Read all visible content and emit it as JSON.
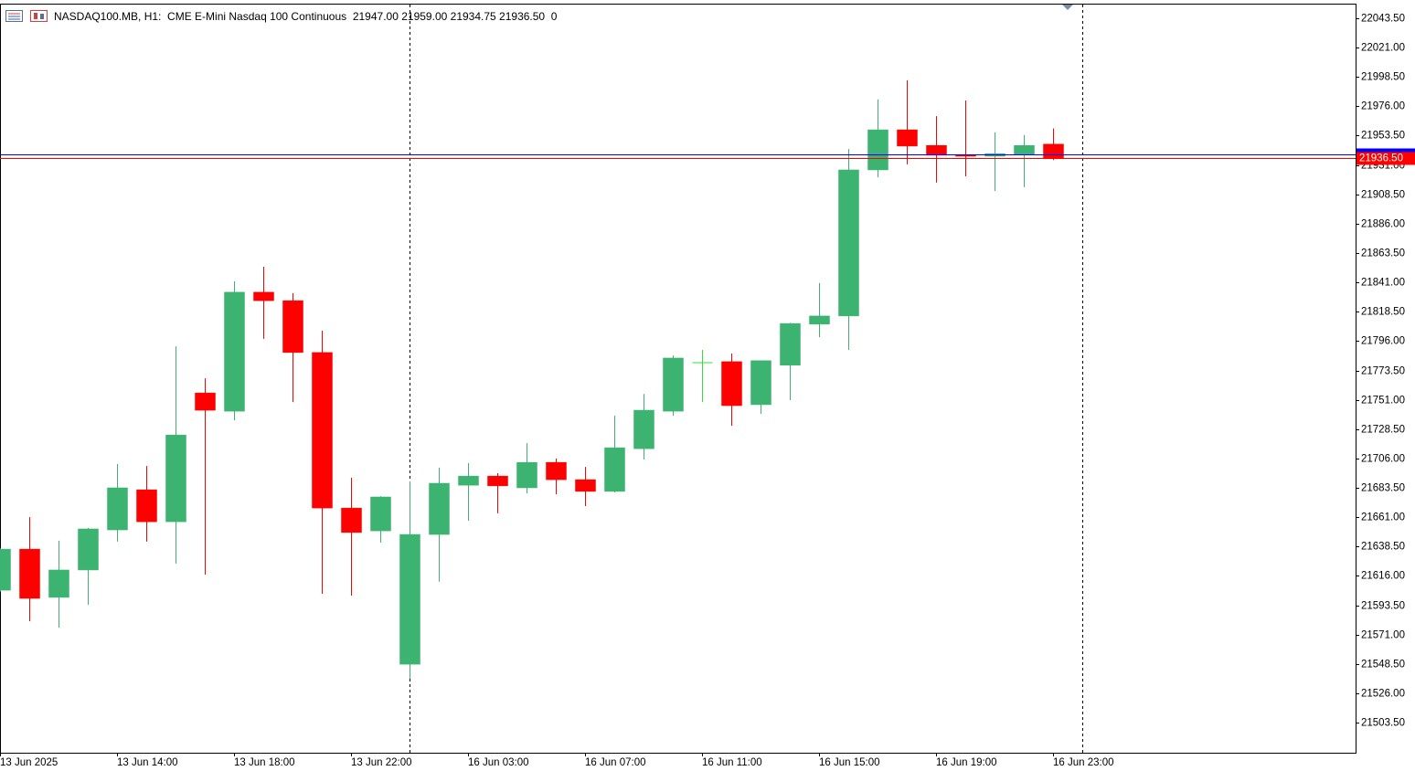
{
  "chart_data": {
    "type": "candlestick",
    "title": "NASDAQ100.MB, H1:",
    "subtitle": "CME E-Mini Nasdaq 100 Continuous",
    "header_values": [
      "21947.00",
      "21959.00",
      "21934.75",
      "21936.50",
      "0"
    ],
    "categories": [
      "13 Jun 2025",
      null,
      null,
      null,
      "13 Jun 14:00",
      null,
      null,
      null,
      "13 Jun 18:00",
      null,
      null,
      null,
      "13 Jun 22:00",
      null,
      null,
      null,
      "16 Jun 03:00",
      null,
      null,
      null,
      "16 Jun 07:00",
      null,
      null,
      null,
      "16 Jun 11:00",
      null,
      null,
      null,
      "16 Jun 15:00",
      null,
      null,
      null,
      "16 Jun 19:00",
      null,
      null,
      null,
      "16 Jun 23:00"
    ],
    "open": [
      21605,
      21636.5,
      21599.5,
      21620.5,
      21651.25,
      21682,
      21657.5,
      21756.25,
      21742.25,
      21833.5,
      21827,
      21787.25,
      21668,
      21650.5,
      21548.25,
      21647.75,
      21685.5,
      21692.5,
      21683.5,
      21703,
      21689.75,
      21680.75,
      21713.5,
      21742.25,
      21779.5,
      21780.25,
      21747.25,
      21777.5,
      21809,
      21815.25,
      21927.25,
      21958,
      21946,
      21939,
      21937.75,
      21939,
      21947
    ],
    "high": [
      21637,
      21661,
      21643,
      21652.75,
      21701.75,
      21700.25,
      21792,
      21767.5,
      21841.75,
      21853,
      21832.75,
      21804,
      21691.25,
      21677,
      21688.5,
      21699,
      21702.5,
      21694.75,
      21717.75,
      21706,
      21699.5,
      21738.75,
      21755.5,
      21785,
      21789.25,
      21786.5,
      21781,
      21810,
      21840.5,
      21943.25,
      21981.25,
      21996,
      21968.5,
      21980.5,
      21956,
      21954,
      21959
    ],
    "low": [
      21604,
      21581.25,
      21576.25,
      21593.75,
      21642.25,
      21642.25,
      21625.5,
      21617,
      21735.25,
      21797.75,
      21749.25,
      21602.25,
      21600.75,
      21641.5,
      21537,
      21611.5,
      21658.25,
      21664,
      21679.25,
      21678.5,
      21669.5,
      21680,
      21705.25,
      21738.75,
      21749.25,
      21731,
      21740.25,
      21750.75,
      21799,
      21789.25,
      21921.5,
      21931.5,
      21917.5,
      21922.25,
      21911,
      21914,
      21934.75
    ],
    "close": [
      21636.5,
      21598.75,
      21620.5,
      21652,
      21683.5,
      21657.5,
      21724,
      21743,
      21833.5,
      21827,
      21787.25,
      21668,
      21649.25,
      21676.5,
      21647.75,
      21687,
      21692.5,
      21685,
      21703,
      21689.75,
      21680.75,
      21714.25,
      21743,
      21783,
      21779.5,
      21746.5,
      21781,
      21809.5,
      21815.25,
      21927.25,
      21958,
      21945.5,
      21938.5,
      21937.75,
      21939.75,
      21946,
      21936.5
    ],
    "up_color": "#3cb371",
    "down_color": "#ff0000",
    "doji_color": "#32e032",
    "ylim": [
      21480.4,
      22054.7
    ],
    "yticks": [
      {
        "value": 22043.5,
        "label": "22043.50"
      },
      {
        "value": 22021,
        "label": "22021.00"
      },
      {
        "value": 21998.5,
        "label": "21998.50"
      },
      {
        "value": 21976,
        "label": "21976.00"
      },
      {
        "value": 21953.5,
        "label": "21953.50"
      },
      {
        "value": 21931,
        "label": "21931.00"
      },
      {
        "value": 21908.5,
        "label": "21908.50"
      },
      {
        "value": 21886,
        "label": "21886.00"
      },
      {
        "value": 21863.5,
        "label": "21863.50"
      },
      {
        "value": 21841,
        "label": "21841.00"
      },
      {
        "value": 21818.5,
        "label": "21818.50"
      },
      {
        "value": 21796,
        "label": "21796.00"
      },
      {
        "value": 21773.5,
        "label": "21773.50"
      },
      {
        "value": 21751,
        "label": "21751.00"
      },
      {
        "value": 21728.5,
        "label": "21728.50"
      },
      {
        "value": 21706,
        "label": "21706.00"
      },
      {
        "value": 21683.5,
        "label": "21683.50"
      },
      {
        "value": 21661,
        "label": "21661.00"
      },
      {
        "value": 21638.5,
        "label": "21638.50"
      },
      {
        "value": 21616,
        "label": "21616.00"
      },
      {
        "value": 21593.5,
        "label": "21593.50"
      },
      {
        "value": 21571,
        "label": "21571.00"
      },
      {
        "value": 21548.5,
        "label": "21548.50"
      },
      {
        "value": 21526,
        "label": "21526.00"
      },
      {
        "value": 21503.5,
        "label": "21503.50"
      }
    ],
    "price_lines": [
      {
        "value": 21939.1,
        "color": "#0000ff"
      },
      {
        "value": 21936.5,
        "label": "21936.50",
        "color": "#ff0000"
      }
    ],
    "grid": false
  }
}
